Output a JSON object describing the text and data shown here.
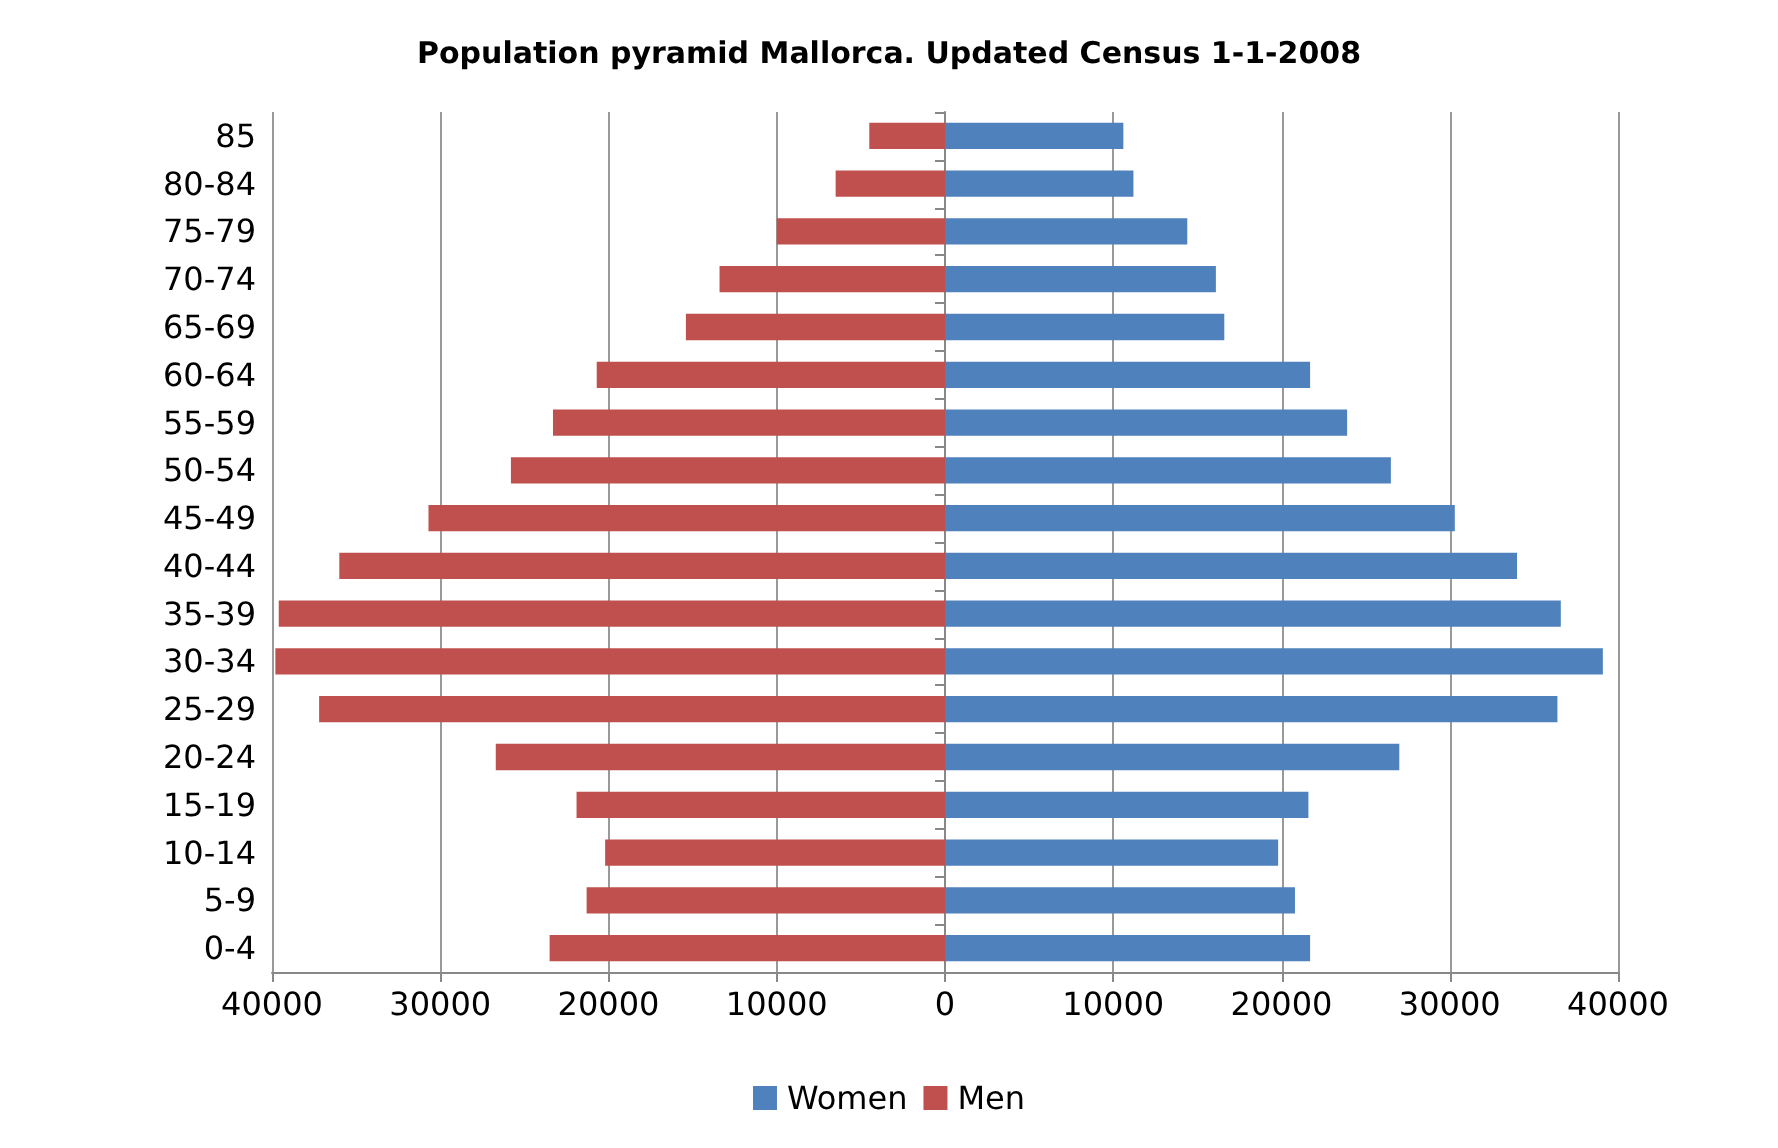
{
  "chart_data": {
    "type": "bar",
    "orientation": "horizontal",
    "stacked": true,
    "title": "Population pyramid Mallorca. Updated Census 1-1-2008",
    "categories": [
      "85",
      "80-84",
      "75-79",
      "70-74",
      "65-69",
      "60-64",
      "55-59",
      "50-54",
      "45-49",
      "40-44",
      "35-39",
      "30-34",
      "25-29",
      "20-24",
      "15-19",
      "10-14",
      "5-9",
      "0-4"
    ],
    "series": [
      {
        "name": "Women",
        "color": "#4f81bd",
        "values": [
          10600,
          11200,
          14400,
          16100,
          16600,
          21700,
          23900,
          26500,
          30300,
          34000,
          36600,
          39100,
          36400,
          27000,
          21600,
          19800,
          20800,
          21700
        ]
      },
      {
        "name": "Men",
        "color": "#c0504d",
        "values": [
          -4500,
          -6500,
          -10000,
          -13400,
          -15400,
          -20700,
          -23300,
          -25800,
          -30700,
          -36000,
          -39600,
          -39800,
          -37200,
          -26700,
          -21900,
          -20200,
          -21300,
          -23500
        ]
      }
    ],
    "xlim": [
      -40000,
      40000
    ],
    "xticks": [
      {
        "value": -40000,
        "label": "40000"
      },
      {
        "value": -30000,
        "label": "30000"
      },
      {
        "value": -20000,
        "label": "20000"
      },
      {
        "value": -10000,
        "label": "10000"
      },
      0,
      10000,
      20000,
      30000,
      40000
    ],
    "grid": "x",
    "legend": "bottom"
  }
}
